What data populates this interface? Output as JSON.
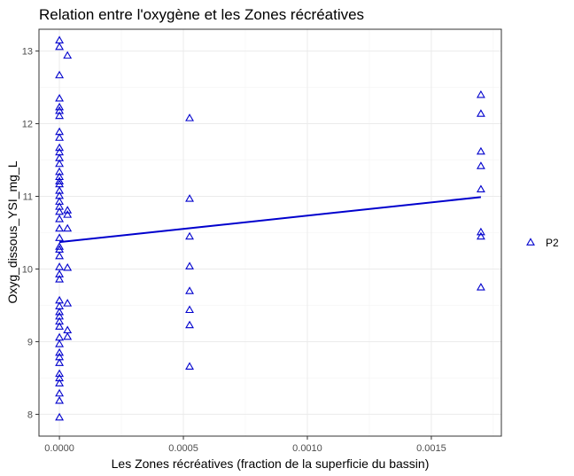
{
  "chart_data": {
    "type": "scatter",
    "title": "Relation entre l'oxygène et les Zones récréatives",
    "xlabel": "Les Zones récréatives (fraction de la superficie du bassin)",
    "ylabel": "Oxyg_dissous_YSI_mg_L",
    "xlim": [
      -8.25e-05,
      0.0017825
    ],
    "ylim": [
      7.7,
      13.3
    ],
    "x_ticks": [
      0,
      0.0005,
      0.001,
      0.0015
    ],
    "x_tick_labels": [
      "0.0000",
      "0.0005",
      "0.0010",
      "0.0015"
    ],
    "y_ticks": [
      8,
      9,
      10,
      11,
      12,
      13
    ],
    "y_tick_labels": [
      "8",
      "9",
      "10",
      "11",
      "12",
      "13"
    ],
    "grid": true,
    "legend_position": "right",
    "marker": "open-triangle",
    "series": [
      {
        "name": "P2",
        "color": "#0000cd",
        "points": [
          [
            0,
            13.14
          ],
          [
            0,
            13.05
          ],
          [
            0,
            12.66
          ],
          [
            0,
            12.34
          ],
          [
            0,
            12.22
          ],
          [
            0,
            12.17
          ],
          [
            0,
            12.1
          ],
          [
            0,
            11.88
          ],
          [
            0,
            11.8
          ],
          [
            0,
            11.66
          ],
          [
            0,
            11.6
          ],
          [
            0,
            11.52
          ],
          [
            0,
            11.44
          ],
          [
            0,
            11.33
          ],
          [
            0,
            11.26
          ],
          [
            0,
            11.2
          ],
          [
            0,
            11.16
          ],
          [
            0,
            11.07
          ],
          [
            0,
            11.0
          ],
          [
            0,
            10.92
          ],
          [
            0,
            10.85
          ],
          [
            0,
            10.78
          ],
          [
            0,
            10.68
          ],
          [
            0,
            10.55
          ],
          [
            0,
            10.42
          ],
          [
            0,
            10.3
          ],
          [
            0,
            10.26
          ],
          [
            0,
            10.17
          ],
          [
            0,
            10.02
          ],
          [
            0,
            9.92
          ],
          [
            0,
            9.85
          ],
          [
            0,
            9.56
          ],
          [
            0,
            9.48
          ],
          [
            0,
            9.4
          ],
          [
            0,
            9.34
          ],
          [
            0,
            9.27
          ],
          [
            0,
            9.2
          ],
          [
            0,
            9.05
          ],
          [
            0,
            8.96
          ],
          [
            0,
            8.84
          ],
          [
            0,
            8.78
          ],
          [
            0,
            8.7
          ],
          [
            0,
            8.55
          ],
          [
            0,
            8.49
          ],
          [
            0,
            8.42
          ],
          [
            0,
            8.28
          ],
          [
            0,
            8.18
          ],
          [
            0,
            7.95
          ],
          [
            3.25e-05,
            12.93
          ],
          [
            3.25e-05,
            10.8
          ],
          [
            3.25e-05,
            10.74
          ],
          [
            3.25e-05,
            10.55
          ],
          [
            3.25e-05,
            10.01
          ],
          [
            3.25e-05,
            9.52
          ],
          [
            3.25e-05,
            9.15
          ],
          [
            3.25e-05,
            9.06
          ],
          [
            0.000525,
            12.07
          ],
          [
            0.000525,
            10.96
          ],
          [
            0.000525,
            10.44
          ],
          [
            0.000525,
            10.03
          ],
          [
            0.000525,
            9.69
          ],
          [
            0.000525,
            9.43
          ],
          [
            0.000525,
            9.22
          ],
          [
            0.000525,
            8.65
          ],
          [
            0.0017,
            12.39
          ],
          [
            0.0017,
            12.13
          ],
          [
            0.0017,
            11.61
          ],
          [
            0.0017,
            11.41
          ],
          [
            0.0017,
            11.09
          ],
          [
            0.0017,
            10.5
          ],
          [
            0.0017,
            10.44
          ],
          [
            0.0017,
            9.74
          ]
        ]
      }
    ],
    "fit_line": {
      "x": [
        0,
        0.0017
      ],
      "y": [
        10.37,
        10.99
      ],
      "color": "#0000cd"
    }
  }
}
